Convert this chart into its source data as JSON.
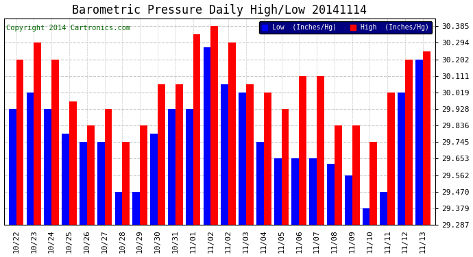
{
  "title": "Barometric Pressure Daily High/Low 20141114",
  "copyright": "Copyright 2014 Cartronics.com",
  "categories": [
    "10/22",
    "10/23",
    "10/24",
    "10/25",
    "10/26",
    "10/27",
    "10/28",
    "10/29",
    "10/30",
    "10/31",
    "11/01",
    "11/02",
    "11/02",
    "11/03",
    "11/04",
    "11/05",
    "11/06",
    "11/07",
    "11/08",
    "11/09",
    "11/10",
    "11/11",
    "11/12",
    "11/13"
  ],
  "high_values": [
    30.202,
    30.294,
    30.202,
    29.968,
    29.836,
    29.928,
    29.745,
    29.836,
    30.065,
    30.065,
    30.34,
    30.385,
    30.294,
    30.065,
    30.019,
    29.928,
    30.111,
    30.111,
    29.836,
    29.836,
    29.745,
    30.019,
    30.202,
    30.245
  ],
  "low_values": [
    29.928,
    30.019,
    29.928,
    29.79,
    29.745,
    29.745,
    29.47,
    29.47,
    29.79,
    29.928,
    29.928,
    30.27,
    30.065,
    30.019,
    29.745,
    29.653,
    29.653,
    29.653,
    29.625,
    29.562,
    29.379,
    29.47,
    30.019,
    30.202
  ],
  "bar_color_high": "#ff0000",
  "bar_color_low": "#0000ff",
  "bg_color": "#ffffff",
  "grid_color": "#c8c8c8",
  "yticks": [
    29.287,
    29.379,
    29.47,
    29.562,
    29.653,
    29.745,
    29.836,
    29.928,
    30.019,
    30.111,
    30.202,
    30.294,
    30.385
  ],
  "ymin": 29.287,
  "ymax": 30.43,
  "legend_low_label": "Low  (Inches/Hg)",
  "legend_high_label": "High  (Inches/Hg)",
  "title_fontsize": 12,
  "tick_fontsize": 8,
  "copyright_fontsize": 7.5
}
